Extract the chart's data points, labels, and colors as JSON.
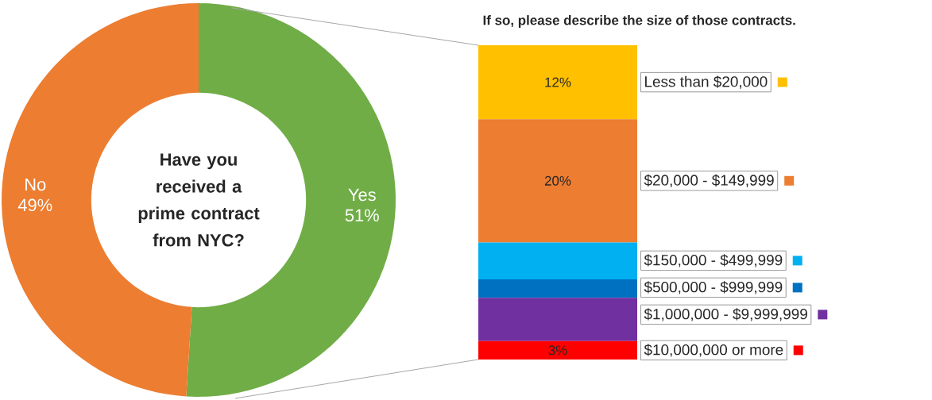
{
  "chart_data": [
    {
      "type": "donut",
      "title": "Have you received a prime contract from NYC?",
      "categories": [
        "Yes",
        "No"
      ],
      "values": [
        51,
        49
      ],
      "value_labels": [
        "51%",
        "49%"
      ],
      "colors": [
        "#70ad47",
        "#ed7d31"
      ]
    },
    {
      "type": "bar",
      "title": "If so, please describe the size of those contracts.",
      "stacked": true,
      "legend": "right",
      "categories": [
        null
      ],
      "series": [
        {
          "name": "$10,000,000 or more",
          "color": "#ff0000",
          "values": [
            3
          ],
          "value_labels": [
            "3%"
          ]
        },
        {
          "name": "$1,000,000 - $9,999,999",
          "color": "#7030a0",
          "values": [
            7
          ],
          "value_labels": [
            null
          ]
        },
        {
          "name": "$500,000 - $999,999",
          "color": "#0070c0",
          "values": [
            3
          ],
          "value_labels": [
            null
          ]
        },
        {
          "name": "$150,000 - $499,999",
          "color": "#00b0f0",
          "values": [
            6
          ],
          "value_labels": [
            null
          ]
        },
        {
          "name": "$20,000 - $149,999",
          "color": "#ed7d31",
          "values": [
            20
          ],
          "value_labels": [
            "20%"
          ]
        },
        {
          "name": "Less than $20,000",
          "color": "#ffc000",
          "values": [
            12
          ],
          "value_labels": [
            "12%"
          ]
        }
      ]
    }
  ]
}
